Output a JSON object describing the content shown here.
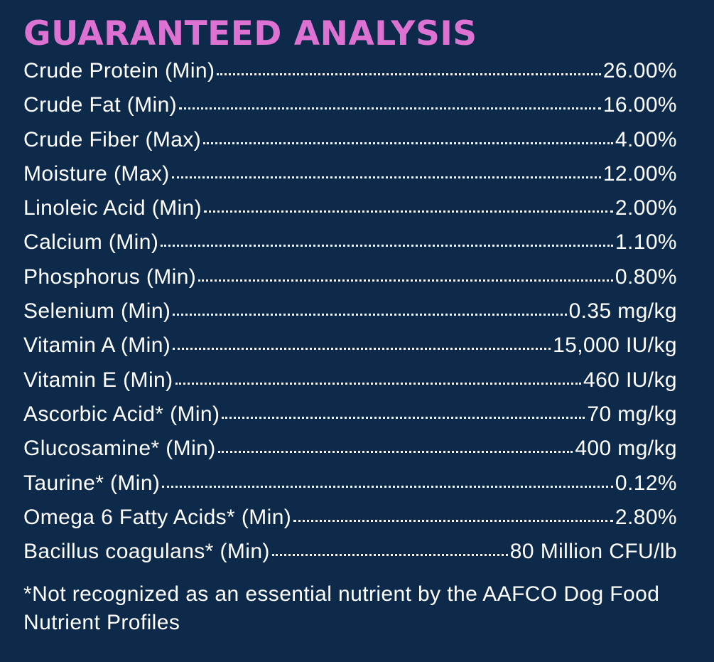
{
  "title": "GUARANTEED ANALYSIS",
  "colors": {
    "background": "#0e2a4b",
    "title": "#dd72d2",
    "text": "#ffffff"
  },
  "rows": [
    {
      "name": "Crude Protein (Min)",
      "value": "26.00%"
    },
    {
      "name": "Crude Fat (Min)",
      "value": "16.00%"
    },
    {
      "name": "Crude Fiber (Max)",
      "value": "4.00%"
    },
    {
      "name": "Moisture (Max)",
      "value": "12.00%"
    },
    {
      "name": "Linoleic Acid (Min)",
      "value": "2.00%"
    },
    {
      "name": "Calcium (Min)",
      "value": "1.10%"
    },
    {
      "name": "Phosphorus (Min)",
      "value": "0.80%"
    },
    {
      "name": "Selenium (Min)",
      "value": "0.35 mg/kg"
    },
    {
      "name": "Vitamin A (Min)",
      "value": "15,000 IU/kg"
    },
    {
      "name": "Vitamin E (Min)",
      "value": "460 IU/kg"
    },
    {
      "name": "Ascorbic Acid* (Min)",
      "value": "70 mg/kg"
    },
    {
      "name": "Glucosamine* (Min)",
      "value": "400 mg/kg"
    },
    {
      "name": "Taurine* (Min)",
      "value": "0.12%"
    },
    {
      "name": "Omega 6 Fatty Acids* (Min)",
      "value": "2.80%"
    },
    {
      "name": "Bacillus coagulans* (Min)",
      "value": "80 Million CFU/lb"
    }
  ],
  "footnote": "*Not recognized as an essential nutrient by the AAFCO Dog Food Nutrient Profiles"
}
